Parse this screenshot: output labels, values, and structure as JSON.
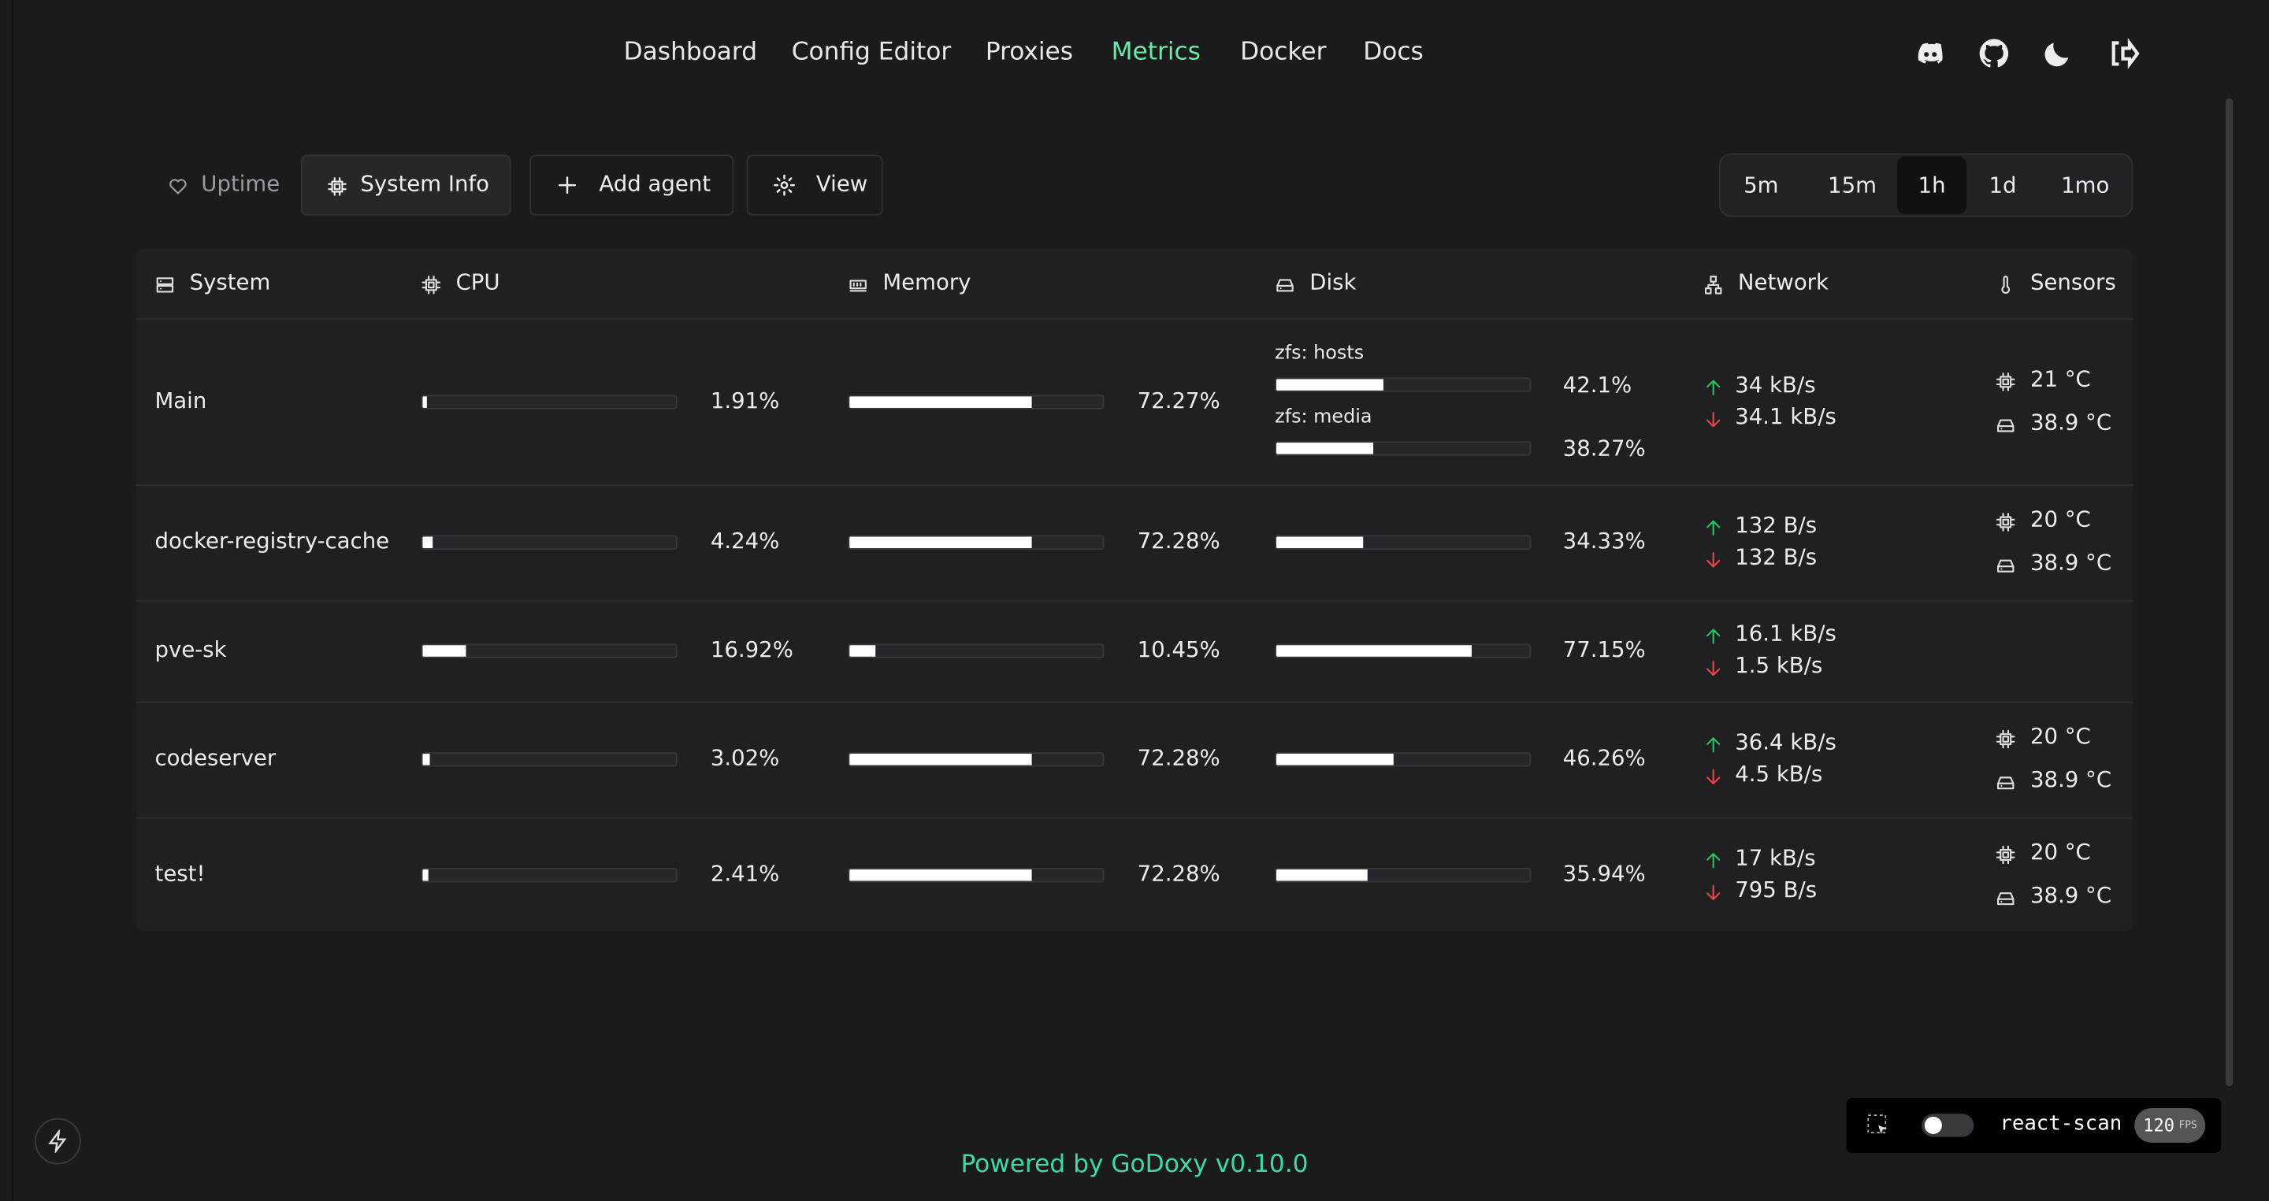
{
  "nav": {
    "items": [
      "Dashboard",
      "Config Editor",
      "Proxies",
      "Metrics",
      "Docker",
      "Docs"
    ],
    "active": 3
  },
  "toolbar": {
    "tabs": [
      "Uptime",
      "System Info"
    ],
    "buttons": [
      "Add agent",
      "View"
    ],
    "ranges": [
      "5m",
      "15m",
      "1h",
      "1d",
      "1mo"
    ],
    "active_range": 2
  },
  "table": {
    "headers": [
      "System",
      "CPU",
      "Memory",
      "Disk",
      "Network",
      "Sensors"
    ],
    "rows": [
      {
        "name": "Main",
        "cpu": {
          "value": 1.91,
          "label": "1.91%"
        },
        "memory": {
          "value": 72.27,
          "label": "72.27%"
        },
        "disks": [
          {
            "name": "zfs: hosts",
            "value": 42.1,
            "label": "42.1%"
          },
          {
            "name": "zfs: media",
            "value": 38.27,
            "label": "38.27%"
          }
        ],
        "net_up": "34 kB/s",
        "net_down": "34.1 kB/s",
        "sensors": [
          "21 °C",
          "38.9 °C"
        ]
      },
      {
        "name": "docker-registry-cache",
        "cpu": {
          "value": 4.24,
          "label": "4.24%"
        },
        "memory": {
          "value": 72.28,
          "label": "72.28%"
        },
        "disks": [
          {
            "value": 34.33,
            "label": "34.33%"
          }
        ],
        "net_up": "132 B/s",
        "net_down": "132 B/s",
        "sensors": [
          "20 °C",
          "38.9 °C"
        ]
      },
      {
        "name": "pve-sk",
        "cpu": {
          "value": 16.92,
          "label": "16.92%"
        },
        "memory": {
          "value": 10.45,
          "label": "10.45%"
        },
        "disks": [
          {
            "value": 77.15,
            "label": "77.15%"
          }
        ],
        "net_up": "16.1 kB/s",
        "net_down": "1.5 kB/s",
        "sensors": []
      },
      {
        "name": "codeserver",
        "cpu": {
          "value": 3.02,
          "label": "3.02%"
        },
        "memory": {
          "value": 72.28,
          "label": "72.28%"
        },
        "disks": [
          {
            "value": 46.26,
            "label": "46.26%"
          }
        ],
        "net_up": "36.4 kB/s",
        "net_down": "4.5 kB/s",
        "sensors": [
          "20 °C",
          "38.9 °C"
        ]
      },
      {
        "name": "test!",
        "cpu": {
          "value": 2.41,
          "label": "2.41%"
        },
        "memory": {
          "value": 72.28,
          "label": "72.28%"
        },
        "disks": [
          {
            "value": 35.94,
            "label": "35.94%"
          }
        ],
        "net_up": "17 kB/s",
        "net_down": "795 B/s",
        "sensors": [
          "20 °C",
          "38.9 °C"
        ]
      }
    ]
  },
  "footer": {
    "prefix": "Powered by",
    "brand": "GoDoxy",
    "version": "v0.10.0"
  },
  "react_scan": {
    "label": "react-scan",
    "fps": "120",
    "fps_unit": "FPS"
  }
}
